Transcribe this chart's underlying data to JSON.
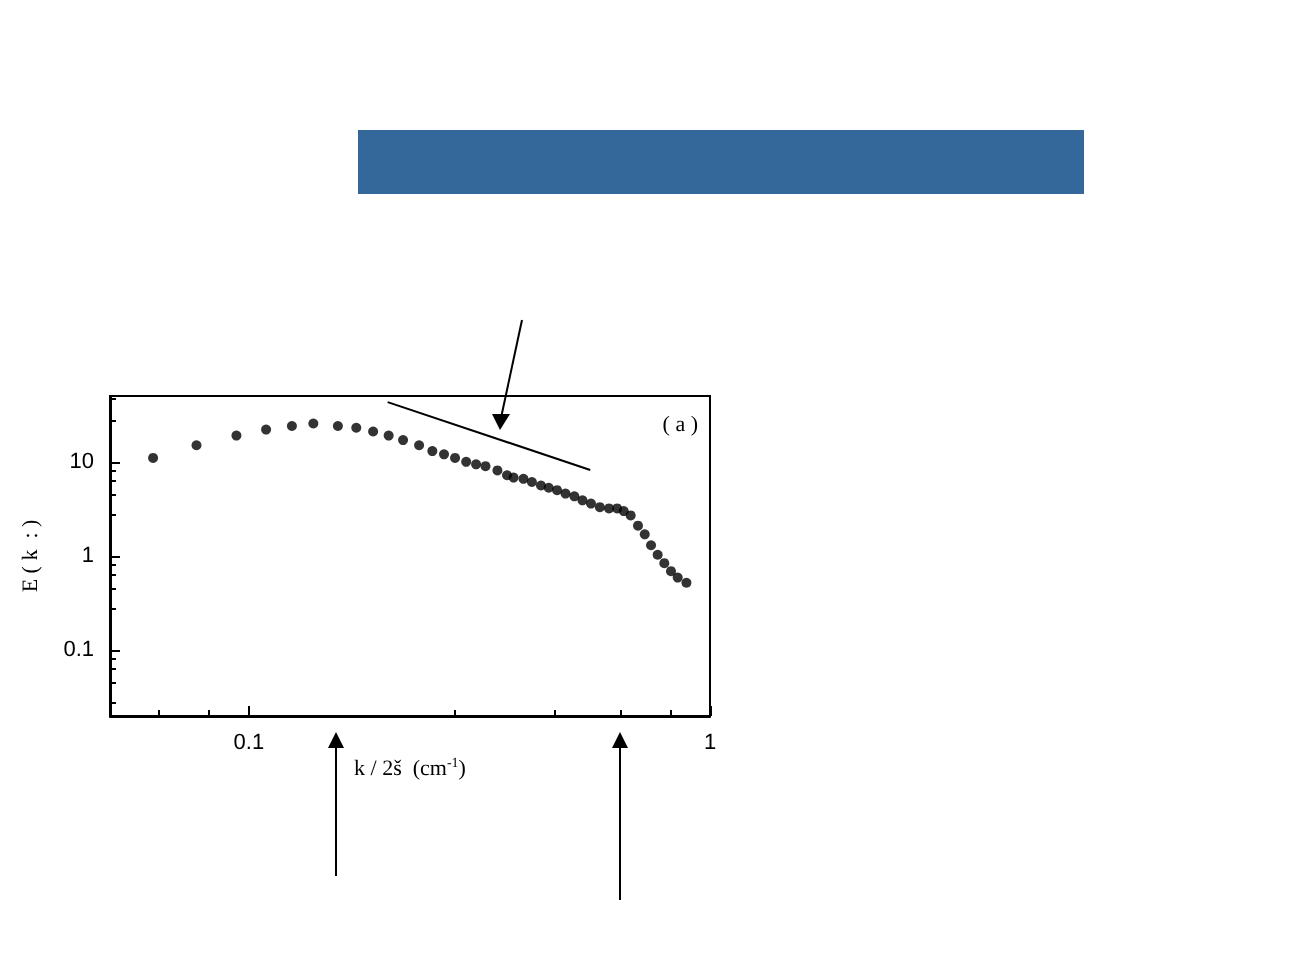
{
  "chart_data": {
    "type": "scatter",
    "xlabel": "k / 2š  (cm$^{-1}$)",
    "ylabel": "E ( k  : )",
    "log": "xy",
    "xlim": [
      0.05,
      1
    ],
    "ylim": [
      0.02,
      50
    ],
    "xticks": [
      0.1,
      1
    ],
    "yticks": [
      0.1,
      1,
      10
    ],
    "grid": false,
    "marker": "circle",
    "annotations": [
      "( a )"
    ],
    "series": [
      {
        "color": "#000000",
        "x": [
          0.062,
          0.077,
          0.094,
          0.109,
          0.124,
          0.138,
          0.156,
          0.171,
          0.186,
          0.201,
          0.216,
          0.234,
          0.25,
          0.265,
          0.28,
          0.296,
          0.311,
          0.326,
          0.346,
          0.363,
          0.375,
          0.394,
          0.411,
          0.43,
          0.447,
          0.466,
          0.486,
          0.508,
          0.529,
          0.552,
          0.577,
          0.604,
          0.629,
          0.65,
          0.673,
          0.698,
          0.722,
          0.745,
          0.77,
          0.796,
          0.823,
          0.851,
          0.889
        ],
        "values": [
          11,
          15,
          19,
          22,
          24,
          25.5,
          24,
          23,
          21,
          19,
          17,
          15,
          13,
          12,
          11,
          10,
          9.4,
          9.0,
          8.1,
          7.2,
          6.8,
          6.6,
          6.1,
          5.6,
          5.3,
          5.0,
          4.6,
          4.3,
          3.9,
          3.6,
          3.3,
          3.2,
          3.2,
          3.0,
          2.7,
          2.1,
          1.7,
          1.3,
          1.03,
          0.84,
          0.69,
          0.59,
          0.52
        ]
      },
      {
        "type": "line",
        "color": "#000000",
        "marker": "none",
        "x": [
          0.2,
          0.55
        ],
        "values": [
          43,
          8.2
        ]
      }
    ]
  }
}
